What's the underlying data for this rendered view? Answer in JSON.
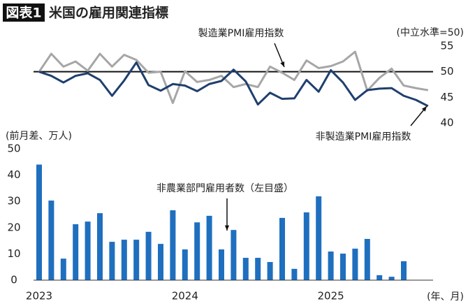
{
  "header": {
    "badge": "図表1",
    "title": "米国の雇用関連指標"
  },
  "chart_data": [
    {
      "type": "line",
      "ylim": [
        40,
        55
      ],
      "yticks": [
        40,
        45,
        50,
        55
      ],
      "axis_label": "(中立水準=50)",
      "reference_line": 50,
      "series": [
        {
          "name": "製造業PMI雇用指数",
          "color": "#a6a6a6",
          "values": [
            50,
            53.5,
            51,
            52,
            50.2,
            53.5,
            51,
            53.3,
            52.3,
            49.8,
            50,
            43.9,
            50.1,
            48,
            48.4,
            49.2,
            47,
            47.6,
            47,
            51,
            49.8,
            48.4,
            52.2,
            50.7,
            51.1,
            52,
            53.9,
            46.3,
            48.8,
            50.6,
            47.3,
            46.8,
            46.4
          ]
        },
        {
          "name": "非製造業PMI雇用指数",
          "color": "#1f3f6e",
          "values": [
            50,
            49.2,
            47.9,
            49.2,
            49.7,
            48.4,
            45.3,
            48.3,
            51.8,
            47.4,
            46.3,
            47.6,
            47.3,
            46.2,
            47.6,
            48.2,
            50.4,
            48.1,
            43.6,
            45.9,
            44.7,
            44.8,
            48.4,
            46.1,
            50.3,
            47.9,
            44.5,
            46.4,
            46.7,
            46.8,
            45.3,
            44.5,
            43.3
          ]
        }
      ]
    },
    {
      "type": "bar",
      "y_label": "(前月差、万人)",
      "x_label": "(年、月)",
      "ylim": [
        0,
        50
      ],
      "yticks": [
        0,
        10,
        20,
        30,
        40,
        50
      ],
      "categories": [
        "2023",
        null,
        null,
        null,
        null,
        null,
        null,
        null,
        null,
        null,
        null,
        null,
        "2024",
        null,
        null,
        null,
        null,
        null,
        null,
        null,
        null,
        null,
        null,
        null,
        "2025",
        null,
        null,
        null,
        null,
        null,
        null,
        null,
        null
      ],
      "series": [
        {
          "name": "非農業部門雇用者数（左目盛）",
          "color": "#1f6fbf",
          "values": [
            44,
            30.3,
            8.2,
            21.3,
            22.3,
            25.5,
            14.6,
            15.4,
            15.4,
            18.4,
            13.8,
            26.6,
            11.7,
            22,
            24.5,
            11.7,
            19.1,
            8.5,
            8.5,
            6.9,
            23.7,
            4.3,
            25.8,
            31.9,
            10.9,
            10.1,
            12,
            15.7,
            1.9,
            1.3,
            7.2,
            null,
            null
          ]
        }
      ]
    }
  ]
}
